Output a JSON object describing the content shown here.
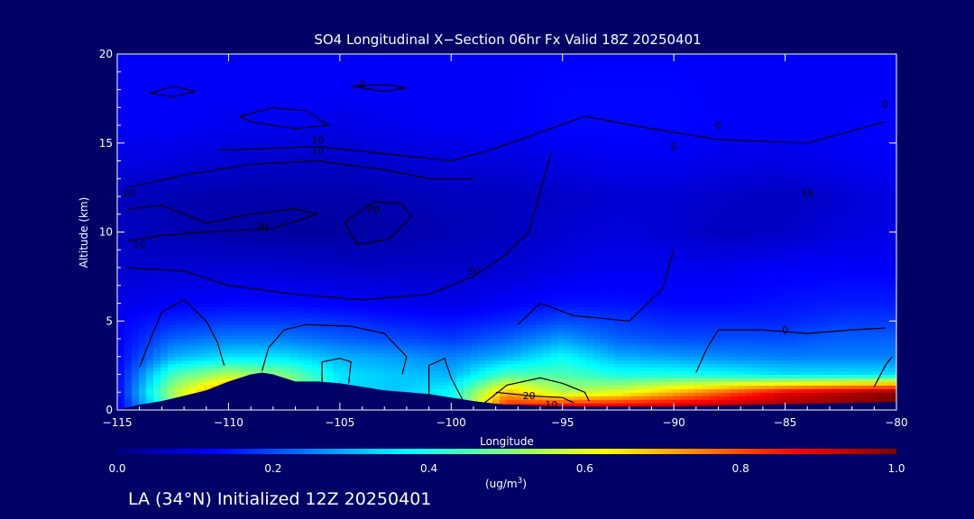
{
  "footer_text": "LA (34°N) Initialized 12Z 20250401",
  "chart_data": {
    "type": "heatmap",
    "title": "SO4 Longitudinal X−Section 06hr  Fx Valid 18Z 20250401",
    "xlabel": "Longitude",
    "ylabel": "Altitude (km)",
    "xlim": [
      -115,
      -80
    ],
    "ylim": [
      0,
      20
    ],
    "x_ticks": [
      -115,
      -110,
      -105,
      -100,
      -95,
      -90,
      -85,
      -80
    ],
    "x_tick_labels": [
      "−115",
      "−110",
      "−105",
      "−100",
      "−95",
      "−90",
      "−85",
      "−80"
    ],
    "y_ticks": [
      0,
      5,
      10,
      15,
      20
    ],
    "y_tick_labels": [
      "0",
      "5",
      "10",
      "15",
      "20"
    ],
    "colorbar": {
      "min": 0.0,
      "max": 1.0,
      "ticks": [
        0.0,
        0.2,
        0.4,
        0.6,
        0.8,
        1.0
      ],
      "tick_labels": [
        "0.0",
        "0.2",
        "0.4",
        "0.6",
        "0.8",
        "1.0"
      ],
      "units_label": "(ug/m",
      "units_superscript": "3",
      "units_suffix": ")",
      "colors": [
        "#000080",
        "#0000ff",
        "#0080ff",
        "#00ffff",
        "#80ff80",
        "#ffff00",
        "#ff8000",
        "#ff0000",
        "#800000"
      ]
    },
    "x": [
      -115,
      -112.5,
      -110,
      -107.5,
      -105,
      -102.5,
      -100,
      -97.5,
      -95,
      -92.5,
      -90,
      -87.5,
      -85,
      -82.5,
      -80
    ],
    "y": [
      0,
      1,
      2,
      3,
      4,
      5,
      6,
      8,
      10,
      12,
      14,
      16,
      18,
      20
    ],
    "values": [
      [
        0.1,
        0.45,
        0.9,
        0.75,
        0.3,
        0.3,
        0.35,
        0.9,
        1.0,
        1.0,
        1.0,
        1.0,
        1.0,
        1.0,
        1.0
      ],
      [
        0.12,
        0.55,
        0.8,
        0.6,
        0.35,
        0.32,
        0.38,
        0.7,
        0.55,
        0.6,
        0.7,
        0.8,
        0.9,
        0.95,
        1.0
      ],
      [
        0.12,
        0.45,
        0.55,
        0.5,
        0.35,
        0.32,
        0.3,
        0.45,
        0.45,
        0.4,
        0.4,
        0.38,
        0.35,
        0.35,
        0.35
      ],
      [
        0.12,
        0.3,
        0.35,
        0.35,
        0.3,
        0.28,
        0.25,
        0.3,
        0.38,
        0.3,
        0.28,
        0.26,
        0.25,
        0.25,
        0.25
      ],
      [
        0.12,
        0.22,
        0.25,
        0.25,
        0.22,
        0.2,
        0.18,
        0.22,
        0.28,
        0.22,
        0.2,
        0.2,
        0.2,
        0.22,
        0.22
      ],
      [
        0.12,
        0.16,
        0.18,
        0.18,
        0.17,
        0.15,
        0.14,
        0.16,
        0.2,
        0.18,
        0.16,
        0.16,
        0.16,
        0.18,
        0.18
      ],
      [
        0.1,
        0.12,
        0.13,
        0.13,
        0.12,
        0.11,
        0.1,
        0.12,
        0.14,
        0.14,
        0.13,
        0.13,
        0.14,
        0.15,
        0.15
      ],
      [
        0.08,
        0.08,
        0.08,
        0.08,
        0.07,
        0.07,
        0.07,
        0.08,
        0.1,
        0.11,
        0.11,
        0.11,
        0.12,
        0.12,
        0.12
      ],
      [
        0.06,
        0.05,
        0.04,
        0.03,
        0.03,
        0.04,
        0.05,
        0.06,
        0.08,
        0.09,
        0.08,
        0.06,
        0.07,
        0.09,
        0.1
      ],
      [
        0.06,
        0.05,
        0.04,
        0.04,
        0.04,
        0.05,
        0.06,
        0.06,
        0.07,
        0.08,
        0.08,
        0.07,
        0.06,
        0.08,
        0.1
      ],
      [
        0.1,
        0.09,
        0.08,
        0.07,
        0.07,
        0.08,
        0.09,
        0.09,
        0.1,
        0.11,
        0.11,
        0.1,
        0.1,
        0.11,
        0.12
      ],
      [
        0.12,
        0.12,
        0.11,
        0.11,
        0.1,
        0.11,
        0.12,
        0.12,
        0.13,
        0.13,
        0.13,
        0.12,
        0.12,
        0.12,
        0.13
      ],
      [
        0.12,
        0.12,
        0.12,
        0.12,
        0.12,
        0.12,
        0.12,
        0.12,
        0.13,
        0.13,
        0.13,
        0.12,
        0.12,
        0.12,
        0.12
      ],
      [
        0.12,
        0.12,
        0.12,
        0.12,
        0.12,
        0.12,
        0.12,
        0.12,
        0.12,
        0.12,
        0.12,
        0.12,
        0.12,
        0.12,
        0.12
      ]
    ],
    "terrain": {
      "x": [
        -115,
        -114,
        -113,
        -112,
        -111,
        -110,
        -109,
        -108.5,
        -108,
        -107,
        -106,
        -105,
        -104,
        -103,
        -102,
        -101,
        -100,
        -99,
        -98,
        -97.5,
        -97,
        -96,
        -95,
        -94,
        -93,
        -92,
        -91,
        -90,
        -88,
        -86,
        -84,
        -82,
        -80
      ],
      "y": [
        0,
        0.3,
        0.5,
        0.8,
        1.1,
        1.6,
        2.0,
        2.1,
        2.0,
        1.6,
        1.6,
        1.5,
        1.3,
        1.1,
        1.0,
        0.9,
        0.7,
        0.5,
        0.35,
        0.3,
        0.3,
        0.25,
        0.22,
        0.2,
        0.2,
        0.2,
        0.2,
        0.2,
        0.25,
        0.3,
        0.35,
        0.4,
        0.45
      ]
    },
    "contours": [
      {
        "points": [
          [
            -113.5,
            17.8
          ],
          [
            -112.5,
            18.2
          ],
          [
            -111.5,
            17.9
          ],
          [
            -112.5,
            17.6
          ],
          [
            -113.5,
            17.8
          ]
        ]
      },
      {
        "points": [
          [
            -109.5,
            16.5
          ],
          [
            -108,
            17.0
          ],
          [
            -106.5,
            16.8
          ],
          [
            -105.5,
            16.0
          ],
          [
            -107,
            15.8
          ],
          [
            -109,
            16.2
          ],
          [
            -109.5,
            16.5
          ]
        ]
      },
      {
        "points": [
          [
            -104.5,
            18.2
          ],
          [
            -103,
            18.3
          ],
          [
            -102,
            18.1
          ],
          [
            -103,
            17.9
          ],
          [
            -104.5,
            18.2
          ]
        ]
      },
      {
        "points": [
          [
            -110.5,
            14.6
          ],
          [
            -106,
            14.8
          ],
          [
            -103,
            14.4
          ],
          [
            -100,
            14.0
          ],
          [
            -98,
            14.7
          ],
          [
            -94,
            16.5
          ],
          [
            -91,
            15.8
          ],
          [
            -88,
            15.2
          ],
          [
            -84,
            15.0
          ],
          [
            -80.5,
            16.2
          ]
        ]
      },
      {
        "points": [
          [
            -114.5,
            12.5
          ],
          [
            -112,
            13.2
          ],
          [
            -109,
            13.8
          ],
          [
            -106,
            14.0
          ],
          [
            -103,
            13.5
          ],
          [
            -101,
            13.0
          ],
          [
            -99,
            13.0
          ]
        ]
      },
      {
        "points": [
          [
            -114.5,
            11.3
          ],
          [
            -113,
            11.5
          ],
          [
            -111,
            10.5
          ],
          [
            -109,
            11.0
          ],
          [
            -107,
            11.3
          ],
          [
            -106,
            11.0
          ],
          [
            -108,
            10.2
          ],
          [
            -111,
            10.0
          ],
          [
            -113,
            9.8
          ],
          [
            -114.5,
            9.5
          ]
        ]
      },
      {
        "points": [
          [
            -104.8,
            10.5
          ],
          [
            -103.5,
            11.7
          ],
          [
            -102.2,
            11.6
          ],
          [
            -101.8,
            10.8
          ],
          [
            -102.8,
            9.6
          ],
          [
            -104.2,
            9.3
          ],
          [
            -104.8,
            10.5
          ]
        ]
      },
      {
        "points": [
          [
            -114.6,
            8.0
          ],
          [
            -112,
            7.8
          ],
          [
            -110,
            7.0
          ],
          [
            -107,
            6.5
          ],
          [
            -104,
            6.2
          ],
          [
            -101,
            6.5
          ],
          [
            -99,
            7.5
          ],
          [
            -97.8,
            8.5
          ],
          [
            -96.5,
            10.0
          ],
          [
            -95.5,
            14.5
          ]
        ]
      },
      {
        "points": [
          [
            -114,
            2.4
          ],
          [
            -113.5,
            4.0
          ],
          [
            -113,
            5.5
          ],
          [
            -112,
            6.2
          ],
          [
            -111,
            5.0
          ],
          [
            -110.5,
            3.8
          ],
          [
            -110.2,
            2.5
          ]
        ]
      },
      {
        "points": [
          [
            -108.5,
            2.2
          ],
          [
            -108.2,
            3.5
          ],
          [
            -107.5,
            4.5
          ],
          [
            -106.5,
            4.8
          ],
          [
            -104.5,
            4.7
          ],
          [
            -103,
            4.3
          ],
          [
            -102,
            3.0
          ],
          [
            -102.2,
            2.0
          ]
        ]
      },
      {
        "points": [
          [
            -105.8,
            1.5
          ],
          [
            -105.8,
            2.7
          ],
          [
            -105,
            2.9
          ],
          [
            -104.5,
            2.7
          ],
          [
            -104.6,
            1.5
          ]
        ]
      },
      {
        "points": [
          [
            -101,
            0.9
          ],
          [
            -101,
            2.5
          ],
          [
            -100.3,
            2.9
          ],
          [
            -100,
            1.8
          ],
          [
            -99.5,
            0.6
          ]
        ]
      },
      {
        "points": [
          [
            -98.5,
            0.4
          ],
          [
            -97.5,
            1.4
          ],
          [
            -96,
            1.8
          ],
          [
            -95,
            1.5
          ],
          [
            -94,
            1.0
          ],
          [
            -93.8,
            0.5
          ]
        ]
      },
      {
        "points": [
          [
            -98,
            1.0
          ],
          [
            -96.5,
            0.8
          ],
          [
            -95,
            0.7
          ],
          [
            -94.5,
            0.4
          ]
        ]
      },
      {
        "points": [
          [
            -97,
            4.8
          ],
          [
            -96,
            6.0
          ],
          [
            -94.5,
            5.3
          ],
          [
            -92,
            5.0
          ],
          [
            -90.5,
            6.8
          ],
          [
            -90,
            9.0
          ]
        ]
      },
      {
        "points": [
          [
            -89,
            2.1
          ],
          [
            -88.5,
            3.5
          ],
          [
            -88,
            4.5
          ],
          [
            -86,
            4.5
          ],
          [
            -84,
            4.3
          ],
          [
            -82,
            4.5
          ],
          [
            -80.5,
            4.6
          ]
        ]
      },
      {
        "points": [
          [
            -81,
            1.3
          ],
          [
            -80.5,
            2.5
          ],
          [
            -80.2,
            3.0
          ]
        ]
      }
    ],
    "contour_labels": [
      {
        "text": "0",
        "x": -104.0,
        "y": 18.3
      },
      {
        "text": "0",
        "x": -80.5,
        "y": 17.2
      },
      {
        "text": "0",
        "x": -88.0,
        "y": 16.0
      },
      {
        "text": "0",
        "x": -90.0,
        "y": 14.8
      },
      {
        "text": "10",
        "x": -106.0,
        "y": 15.2
      },
      {
        "text": "10",
        "x": -106.0,
        "y": 14.6
      },
      {
        "text": "10",
        "x": -114.5,
        "y": 12.2
      },
      {
        "text": "10",
        "x": -84.0,
        "y": 12.2
      },
      {
        "text": "20",
        "x": -108.5,
        "y": 10.3
      },
      {
        "text": "20",
        "x": -103.5,
        "y": 11.3
      },
      {
        "text": "10",
        "x": -114.0,
        "y": 9.3
      },
      {
        "text": "10",
        "x": -99.0,
        "y": 7.8
      },
      {
        "text": "0",
        "x": -85.0,
        "y": 4.5
      },
      {
        "text": "20",
        "x": -96.5,
        "y": 0.8
      },
      {
        "text": "10",
        "x": -95.5,
        "y": 0.3
      }
    ]
  }
}
